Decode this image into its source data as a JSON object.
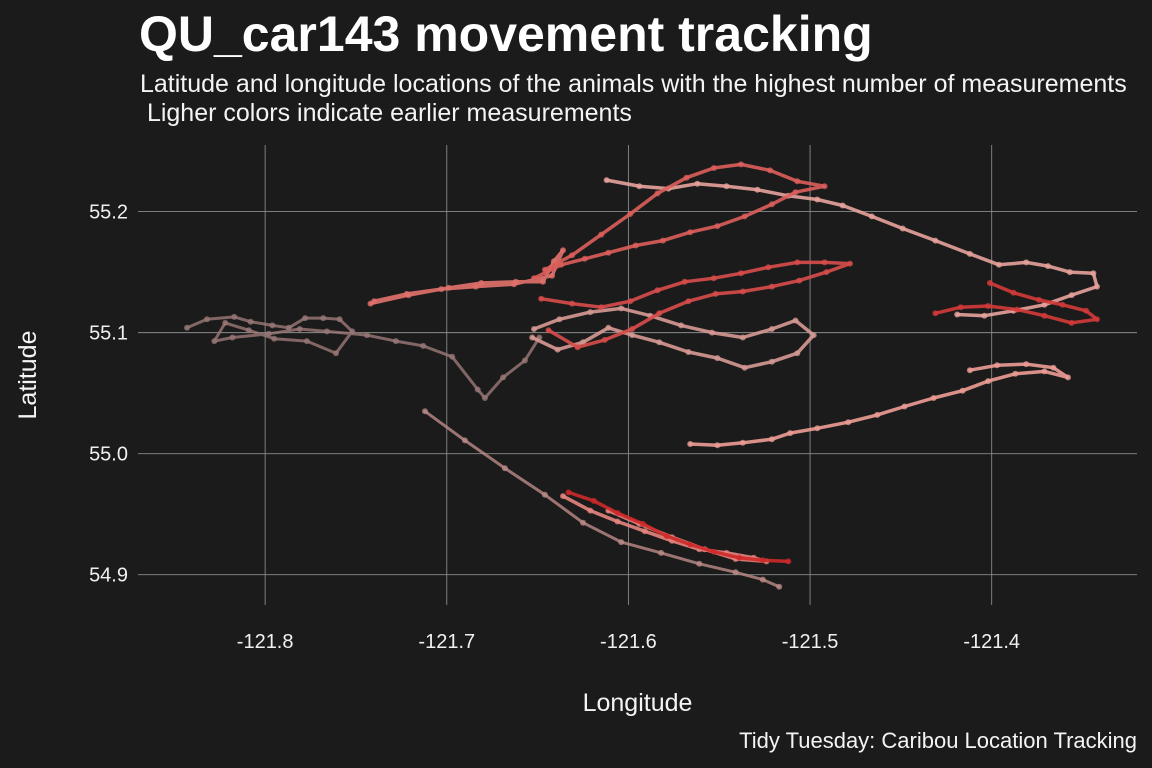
{
  "chart_data": {
    "type": "line",
    "title": "QU_car143 movement tracking",
    "subtitle": "Latitude and longitude locations of the animals with the highest number of measurements\n Ligher colors indicate earlier measurements",
    "caption": "Tidy Tuesday: Caribou Location Tracking",
    "xlabel": "Longitude",
    "ylabel": "Latitude",
    "xlim": [
      -121.87,
      -121.32
    ],
    "ylim": [
      54.875,
      55.255
    ],
    "x_ticks": [
      -121.8,
      -121.7,
      -121.6,
      -121.5,
      -121.4
    ],
    "x_tick_labels": [
      "-121.8",
      "-121.7",
      "-121.6",
      "-121.5",
      "-121.4"
    ],
    "y_ticks": [
      54.9,
      55.0,
      55.1,
      55.2
    ],
    "y_tick_labels": [
      "54.9",
      "55.0",
      "55.1",
      "55.2"
    ],
    "grid": true,
    "color_encoding": "light (early) to dark red (late)",
    "colors": {
      "background": "#1b1b1b",
      "early": "#8a7070",
      "mid": "#f0a8a0",
      "late": "#cc2020"
    },
    "series": [
      {
        "segments": [
          {
            "x": [
              -121.843,
              -121.832,
              -121.817,
              -121.808,
              -121.796,
              -121.787,
              -121.778,
              -121.768,
              -121.759,
              -121.752,
              -121.761,
              -121.777,
              -121.795,
              -121.809,
              -121.822,
              -121.828,
              -121.818,
              -121.798,
              -121.781,
              -121.766,
              -121.744,
              -121.728,
              -121.713,
              -121.697,
              -121.683,
              -121.679,
              -121.669,
              -121.657,
              -121.649
            ],
            "y": [
              55.104,
              55.111,
              55.113,
              55.109,
              55.106,
              55.104,
              55.112,
              55.112,
              55.111,
              55.101,
              55.083,
              55.093,
              55.095,
              55.102,
              55.108,
              55.093,
              55.096,
              55.099,
              55.103,
              55.101,
              55.098,
              55.093,
              55.089,
              55.08,
              55.053,
              55.046,
              55.063,
              55.077,
              55.096
            ]
          },
          {
            "x": [
              -121.712,
              -121.69,
              -121.668,
              -121.646,
              -121.625,
              -121.604,
              -121.582,
              -121.561,
              -121.541,
              -121.526,
              -121.517
            ],
            "y": [
              55.035,
              55.011,
              54.988,
              54.966,
              54.943,
              54.927,
              54.918,
              54.909,
              54.902,
              54.896,
              54.89
            ]
          }
        ]
      },
      {
        "segments": [
          {
            "x": [
              -121.652,
              -121.638,
              -121.621,
              -121.604,
              -121.588,
              -121.571,
              -121.554,
              -121.537,
              -121.521,
              -121.508,
              -121.498,
              -121.507,
              -121.521,
              -121.536,
              -121.551,
              -121.567,
              -121.583,
              -121.598,
              -121.611,
              -121.625,
              -121.639,
              -121.653
            ],
            "y": [
              55.103,
              55.111,
              55.117,
              55.12,
              55.114,
              55.106,
              55.1,
              55.096,
              55.103,
              55.11,
              55.098,
              55.083,
              55.076,
              55.071,
              55.079,
              55.084,
              55.092,
              55.098,
              55.104,
              55.092,
              55.086,
              55.096
            ]
          },
          {
            "x": [
              -121.612,
              -121.594,
              -121.578,
              -121.562,
              -121.546,
              -121.529,
              -121.512,
              -121.496,
              -121.482,
              -121.466,
              -121.449,
              -121.431,
              -121.412,
              -121.396,
              -121.381,
              -121.369,
              -121.357,
              -121.344,
              -121.342,
              -121.356,
              -121.371,
              -121.388,
              -121.404,
              -121.419
            ],
            "y": [
              55.226,
              55.221,
              55.219,
              55.223,
              55.221,
              55.218,
              55.213,
              55.21,
              55.205,
              55.196,
              55.186,
              55.176,
              55.165,
              55.156,
              55.158,
              55.155,
              55.15,
              55.149,
              55.138,
              55.131,
              55.123,
              55.118,
              55.114,
              55.115
            ]
          },
          {
            "x": [
              -121.566,
              -121.551,
              -121.537,
              -121.521,
              -121.511,
              -121.496,
              -121.479,
              -121.463,
              -121.448,
              -121.432,
              -121.416,
              -121.402,
              -121.387,
              -121.371,
              -121.358,
              -121.366,
              -121.381,
              -121.397,
              -121.412
            ],
            "y": [
              55.008,
              55.007,
              55.009,
              55.012,
              55.017,
              55.021,
              55.026,
              55.032,
              55.039,
              55.046,
              55.052,
              55.06,
              55.066,
              55.068,
              55.063,
              55.071,
              55.074,
              55.073,
              55.069
            ]
          },
          {
            "x": [
              -121.636,
              -121.621,
              -121.606,
              -121.591,
              -121.576,
              -121.561,
              -121.546,
              -121.531,
              -121.524,
              -121.541,
              -121.558,
              -121.576,
              -121.594,
              -121.611
            ],
            "y": [
              54.965,
              54.953,
              54.944,
              54.936,
              54.928,
              54.921,
              54.918,
              54.914,
              54.911,
              54.913,
              54.921,
              54.931,
              54.942,
              54.953
            ]
          }
        ]
      },
      {
        "segments": [
          {
            "x": [
              -121.742,
              -121.721,
              -121.699,
              -121.681,
              -121.662,
              -121.647,
              -121.641,
              -121.636,
              -121.642,
              -121.663,
              -121.684,
              -121.703,
              -121.722,
              -121.74
            ],
            "y": [
              55.124,
              55.131,
              55.137,
              55.141,
              55.142,
              55.142,
              55.159,
              55.168,
              55.147,
              55.14,
              55.138,
              55.136,
              55.132,
              55.126
            ]
          },
          {
            "x": [
              -121.652,
              -121.637,
              -121.624,
              -121.611,
              -121.596,
              -121.581,
              -121.566,
              -121.551,
              -121.536,
              -121.521,
              -121.508,
              -121.492,
              -121.507,
              -121.522,
              -121.538,
              -121.553,
              -121.568,
              -121.584,
              -121.599,
              -121.615,
              -121.631,
              -121.646
            ],
            "y": [
              55.145,
              55.156,
              55.161,
              55.166,
              55.172,
              55.176,
              55.183,
              55.188,
              55.196,
              55.206,
              55.216,
              55.221,
              55.225,
              55.234,
              55.239,
              55.236,
              55.228,
              55.215,
              55.198,
              55.181,
              55.164,
              55.152
            ]
          },
          {
            "x": [
              -121.648,
              -121.631,
              -121.615,
              -121.599,
              -121.584,
              -121.569,
              -121.553,
              -121.538,
              -121.523,
              -121.507,
              -121.492,
              -121.478,
              -121.491,
              -121.506,
              -121.521,
              -121.537,
              -121.552,
              -121.567,
              -121.583,
              -121.598,
              -121.613,
              -121.628,
              -121.644
            ],
            "y": [
              55.128,
              55.124,
              55.121,
              55.126,
              55.135,
              55.142,
              55.145,
              55.149,
              55.154,
              55.158,
              55.158,
              55.157,
              55.15,
              55.143,
              55.138,
              55.134,
              55.132,
              55.126,
              55.116,
              55.103,
              55.094,
              55.088,
              55.102
            ]
          },
          {
            "x": [
              -121.401,
              -121.388,
              -121.374,
              -121.361,
              -121.348,
              -121.342,
              -121.356,
              -121.371,
              -121.386,
              -121.402,
              -121.417,
              -121.431
            ],
            "y": [
              55.141,
              55.133,
              55.127,
              55.123,
              55.118,
              55.111,
              55.108,
              55.114,
              55.119,
              55.122,
              55.121,
              55.116
            ]
          },
          {
            "x": [
              -121.633,
              -121.619,
              -121.606,
              -121.592,
              -121.579,
              -121.566,
              -121.553,
              -121.539,
              -121.526,
              -121.512
            ],
            "y": [
              54.968,
              54.961,
              54.951,
              54.942,
              54.932,
              54.925,
              54.919,
              54.914,
              54.912,
              54.911
            ]
          }
        ]
      }
    ]
  }
}
